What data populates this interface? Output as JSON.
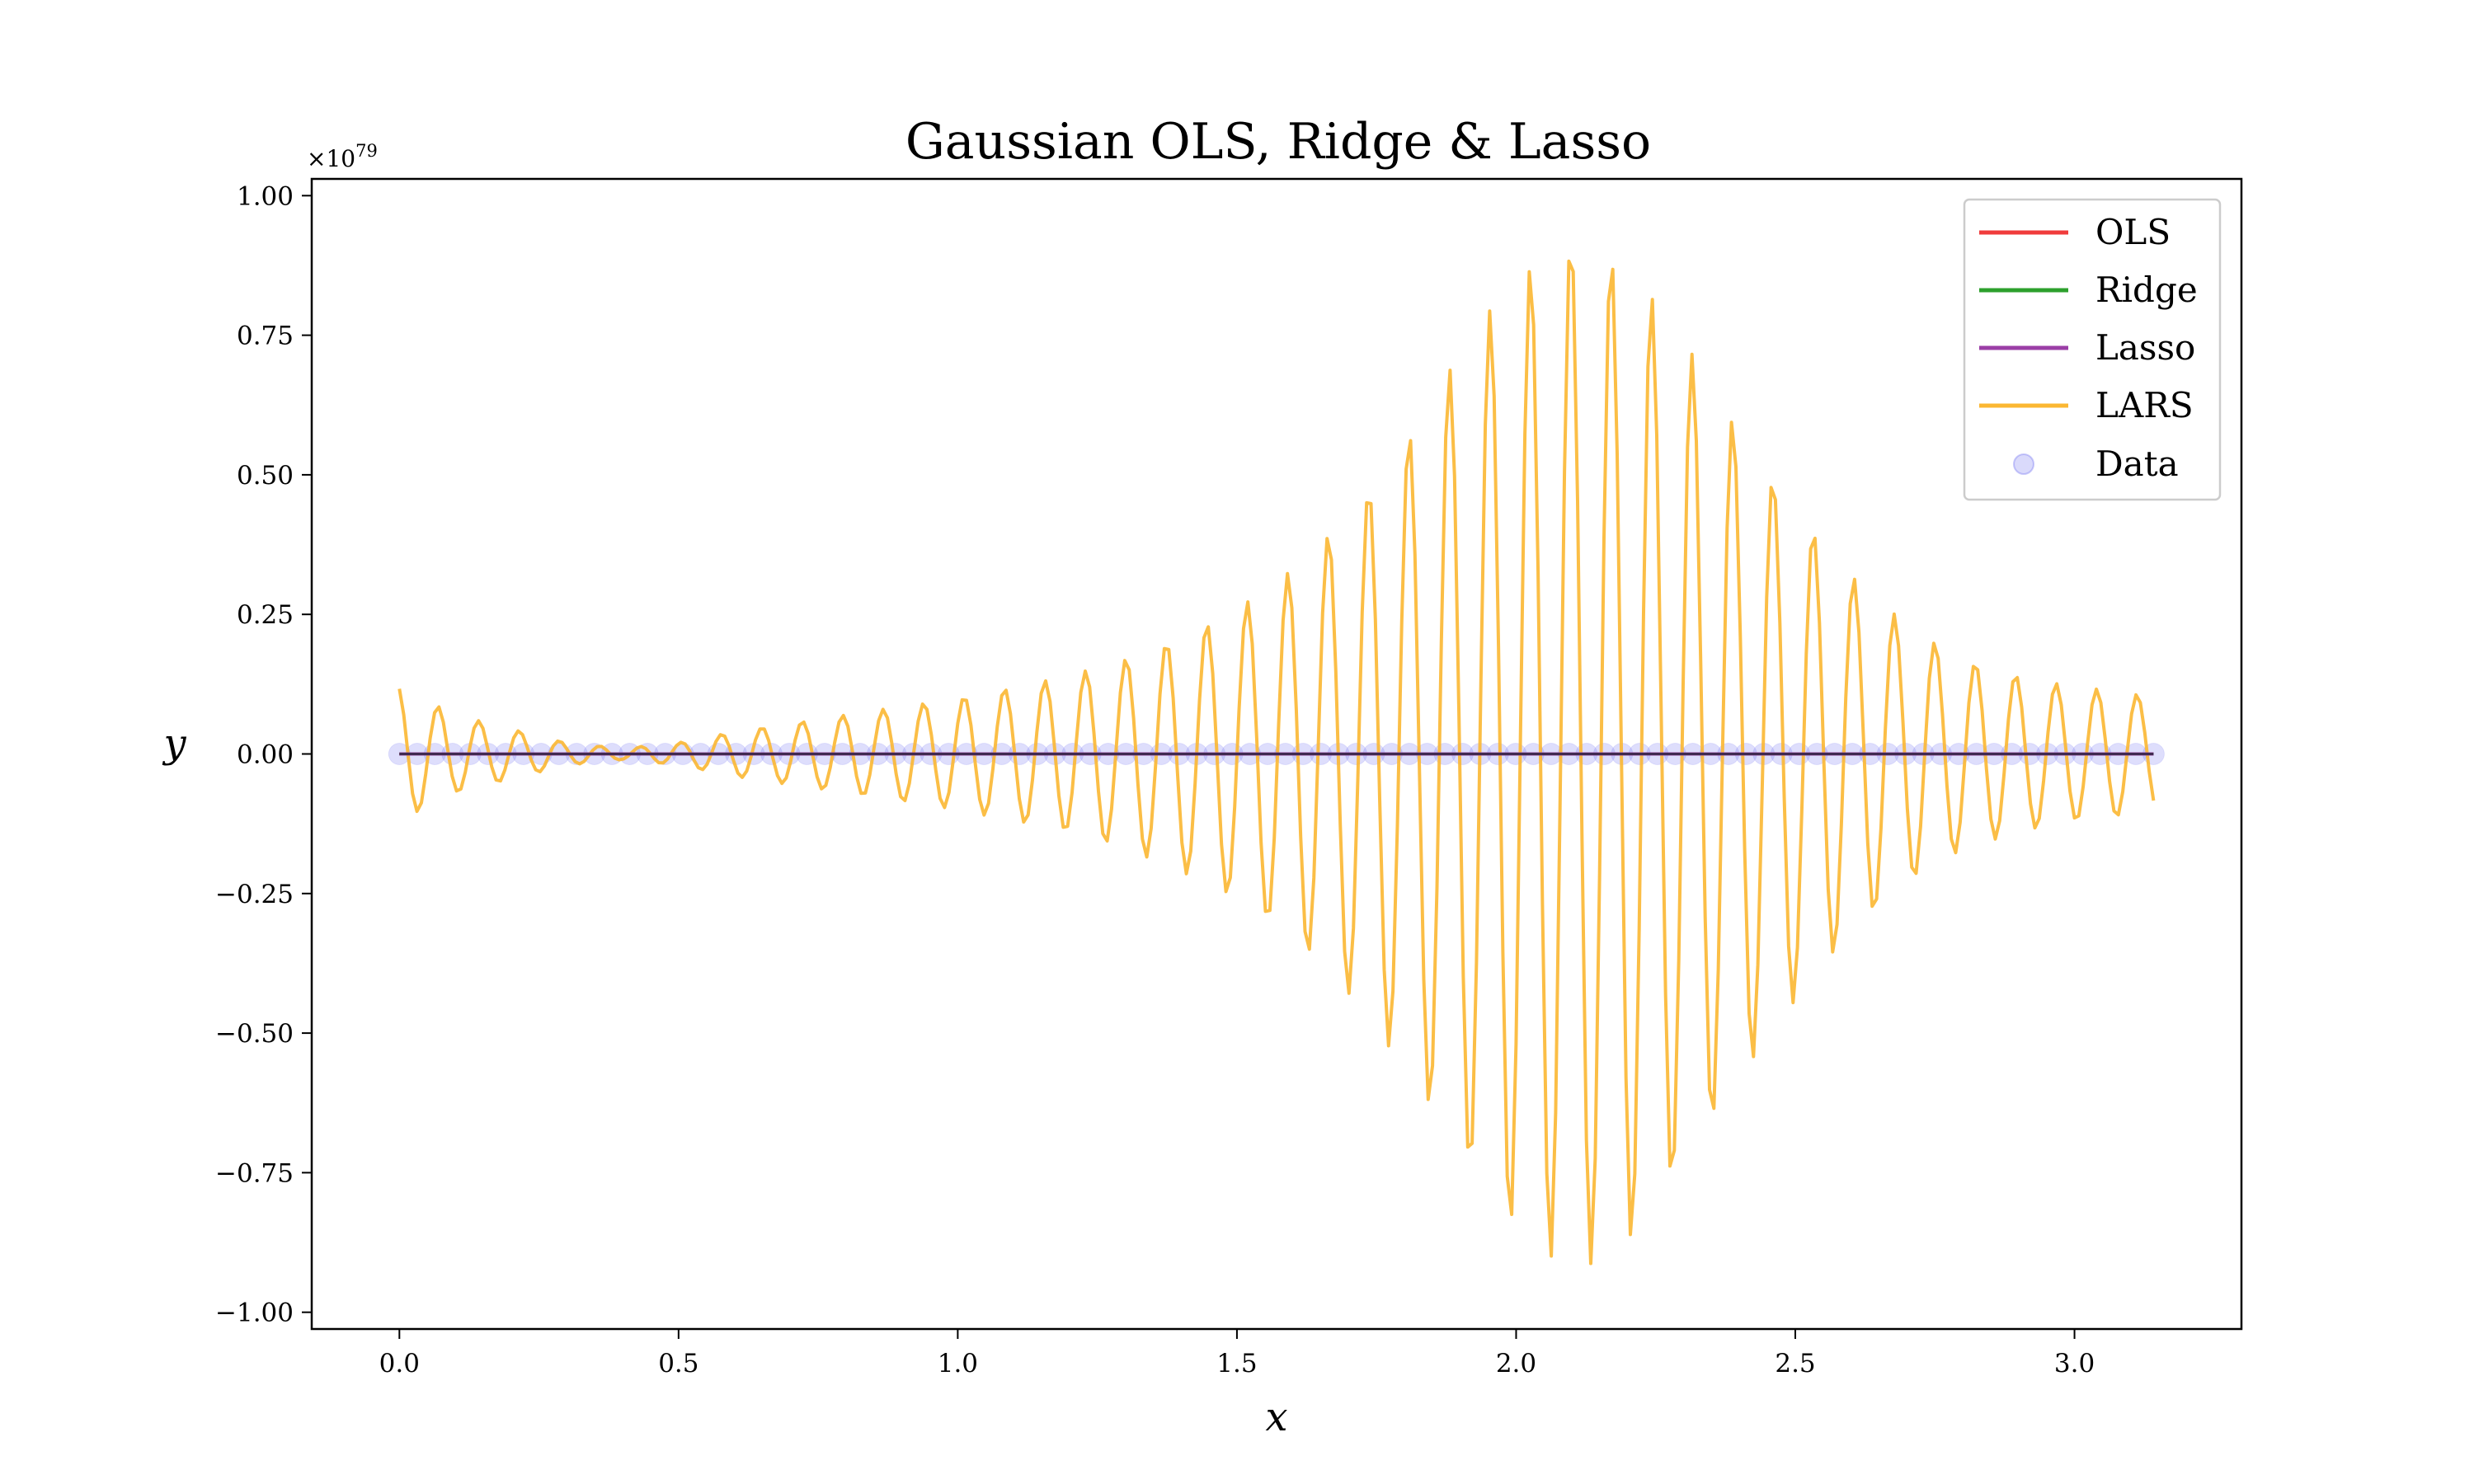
{
  "chart_data": {
    "type": "line",
    "title": "Gaussian OLS, Ridge & Lasso",
    "xlabel": "x",
    "ylabel": "y",
    "y_offset_label": "×10",
    "y_offset_exponent": "79",
    "xlim": [
      -0.157,
      3.299
    ],
    "ylim": [
      -1.03,
      1.03
    ],
    "x_ticks": [
      0.0,
      0.5,
      1.0,
      1.5,
      2.0,
      2.5,
      3.0
    ],
    "x_tick_labels": [
      "0.0",
      "0.5",
      "1.0",
      "1.5",
      "2.0",
      "2.5",
      "3.0"
    ],
    "y_ticks": [
      -1.0,
      -0.75,
      -0.5,
      -0.25,
      0.0,
      0.25,
      0.5,
      0.75,
      1.0
    ],
    "y_tick_labels": [
      "−1.00",
      "−0.75",
      "−0.50",
      "−0.25",
      "0.00",
      "0.25",
      "0.50",
      "0.75",
      "1.00"
    ],
    "grid": false,
    "legend_position": "top-right",
    "series": [
      {
        "name": "OLS",
        "color": "#f03c3c",
        "x_range": [
          0,
          3.1416
        ],
        "values": "constant 0"
      },
      {
        "name": "Ridge",
        "color": "#2ca02c",
        "x_range": [
          0,
          3.1416
        ],
        "values": "constant 0"
      },
      {
        "name": "Lasso",
        "color": "#9b3ea6",
        "x_range": [
          0,
          3.1416
        ],
        "values": "constant 0"
      },
      {
        "name": "LARS",
        "color": "#fbb732",
        "x_range": [
          0,
          3.1416
        ],
        "points": 400,
        "envelope": {
          "x": [
            0.0,
            0.1,
            0.2,
            0.3,
            0.4,
            0.5,
            0.6,
            0.7,
            0.8,
            0.9,
            1.0,
            1.1,
            1.2,
            1.3,
            1.4,
            1.5,
            1.6,
            1.7,
            1.8,
            1.9,
            2.0,
            2.1,
            2.2,
            2.3,
            2.4,
            2.5,
            2.6,
            2.7,
            2.8,
            2.9,
            3.0,
            3.1,
            3.14
          ],
          "amplitude": [
            0.12,
            0.07,
            0.045,
            0.02,
            0.01,
            0.02,
            0.04,
            0.055,
            0.07,
            0.085,
            0.1,
            0.12,
            0.14,
            0.17,
            0.21,
            0.26,
            0.33,
            0.43,
            0.56,
            0.72,
            0.86,
            0.93,
            0.88,
            0.74,
            0.58,
            0.44,
            0.32,
            0.23,
            0.17,
            0.14,
            0.12,
            0.11,
            0.1
          ]
        }
      }
    ],
    "data_points": {
      "name": "Data",
      "color": "#6a6af0",
      "x_range": [
        0,
        3.1416
      ],
      "count": 100,
      "y": 0
    }
  }
}
